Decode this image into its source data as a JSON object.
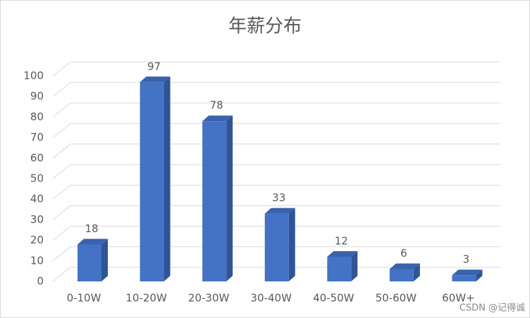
{
  "chart_data": {
    "type": "bar3d",
    "title": "年薪分布",
    "categories": [
      "0-10W",
      "10-20W",
      "20-30W",
      "30-40W",
      "40-50W",
      "50-60W",
      "60W+"
    ],
    "values": [
      18,
      97,
      78,
      33,
      12,
      6,
      3
    ],
    "color": "#4472c4",
    "ylim": [
      0,
      100
    ],
    "yticks": [
      0,
      10,
      20,
      30,
      40,
      50,
      60,
      70,
      80,
      90,
      100
    ],
    "grid": true,
    "watermark": "CSDN @记得诚"
  }
}
